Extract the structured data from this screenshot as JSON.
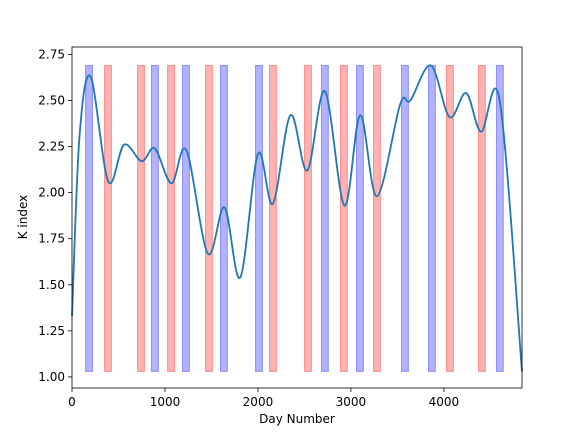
{
  "chart_data": {
    "type": "line",
    "xlabel": "Day Number",
    "ylabel": "K index",
    "xlim": [
      0,
      4840
    ],
    "ylim": [
      0.94,
      2.79
    ],
    "xticks": [
      0,
      1000,
      2000,
      3000,
      4000
    ],
    "yticks": [
      {
        "value": 1.0,
        "label": "1.00"
      },
      {
        "value": 1.25,
        "label": "1.25"
      },
      {
        "value": 1.5,
        "label": "1.50"
      },
      {
        "value": 1.75,
        "label": "1.75"
      },
      {
        "value": 2.0,
        "label": "2.00"
      },
      {
        "value": 2.25,
        "label": "2.25"
      },
      {
        "value": 2.5,
        "label": "2.50"
      },
      {
        "value": 2.75,
        "label": "2.75"
      }
    ],
    "series": [
      {
        "color": "#1f77b4",
        "x": [
          0,
          80,
          200,
          390,
          560,
          750,
          890,
          1070,
          1230,
          1460,
          1640,
          1810,
          2000,
          2160,
          2350,
          2530,
          2720,
          2930,
          3100,
          3280,
          3530,
          3640,
          3860,
          4060,
          4240,
          4400,
          4600,
          4840
        ],
        "values": [
          1.33,
          2.3,
          2.63,
          2.06,
          2.26,
          2.17,
          2.24,
          2.05,
          2.23,
          1.67,
          1.92,
          1.54,
          2.21,
          1.94,
          2.42,
          2.12,
          2.55,
          1.93,
          2.42,
          1.98,
          2.48,
          2.5,
          2.69,
          2.41,
          2.54,
          2.33,
          2.5,
          1.03
        ]
      }
    ],
    "band_ylim": [
      1.03,
      2.69
    ],
    "bands": [
      {
        "x": [
          146,
          220
        ],
        "color": "#0000ff"
      },
      {
        "x": [
          350,
          424
        ],
        "color": "#ff0000"
      },
      {
        "x": [
          705,
          779
        ],
        "color": "#ff0000"
      },
      {
        "x": [
          855,
          929
        ],
        "color": "#0000ff"
      },
      {
        "x": [
          1028,
          1102
        ],
        "color": "#ff0000"
      },
      {
        "x": [
          1189,
          1263
        ],
        "color": "#0000ff"
      },
      {
        "x": [
          1436,
          1510
        ],
        "color": "#ff0000"
      },
      {
        "x": [
          1597,
          1671
        ],
        "color": "#0000ff"
      },
      {
        "x": [
          1974,
          2048
        ],
        "color": "#0000ff"
      },
      {
        "x": [
          2124,
          2198
        ],
        "color": "#ff0000"
      },
      {
        "x": [
          2501,
          2575
        ],
        "color": "#ff0000"
      },
      {
        "x": [
          2683,
          2757
        ],
        "color": "#0000ff"
      },
      {
        "x": [
          2888,
          2962
        ],
        "color": "#ff0000"
      },
      {
        "x": [
          3060,
          3134
        ],
        "color": "#0000ff"
      },
      {
        "x": [
          3243,
          3317
        ],
        "color": "#ff0000"
      },
      {
        "x": [
          3544,
          3618
        ],
        "color": "#0000ff"
      },
      {
        "x": [
          3834,
          3908
        ],
        "color": "#0000ff"
      },
      {
        "x": [
          4028,
          4102
        ],
        "color": "#ff0000"
      },
      {
        "x": [
          4372,
          4446
        ],
        "color": "#ff0000"
      },
      {
        "x": [
          4565,
          4639
        ],
        "color": "#0000ff"
      }
    ]
  }
}
